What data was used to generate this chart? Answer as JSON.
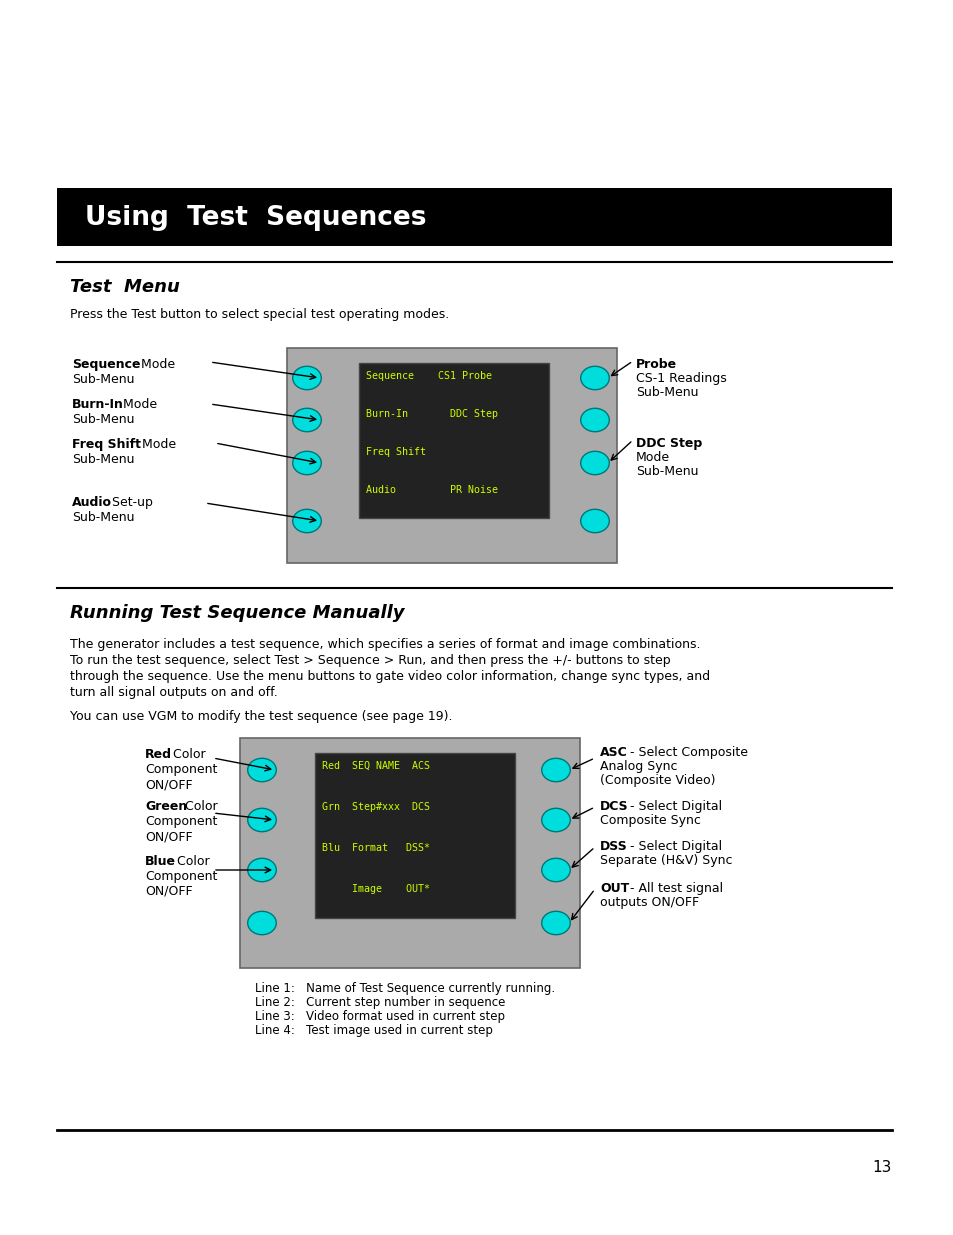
{
  "title_banner": "Using  Test  Sequences",
  "banner_bg": "#000000",
  "banner_text_color": "#ffffff",
  "section1_title": "Test  Menu",
  "section1_body1": "Press the Test button to select special test operating modes.",
  "section2_title": "Running Test Sequence Manually",
  "section2_body1": "The generator includes a test sequence, which specifies a series of format and image combinations.\nTo run the test sequence, select Test > Sequence > Run, and then press the +/- buttons to step\nthrough the sequence. Use the menu buttons to gate video color information, change sync types, and\nturn all signal outputs on and off.",
  "section2_body2": "You can use VGM to modify the test sequence (see page 19).",
  "page_number": "13",
  "bg_color": "#ffffff",
  "text_color": "#000000",
  "cyan_color": "#00dddd",
  "screen_bg": "#222222",
  "screen_green": "#ccff00",
  "device_gray": "#aaaaaa",
  "line_color": "#000000",
  "screen1_lines": [
    "Sequence    CS1 Probe",
    "Burn-In       DDC Step",
    "Freq Shift",
    "Audio         PR Noise"
  ],
  "screen2_lines": [
    "Red  SEQ NAME  ACS",
    "Grn  Step#xxx  DCS",
    "Blu  Format   DSS*",
    "     Image    OUT*"
  ],
  "caption_lines": [
    "Line 1:   Name of Test Sequence currently running.",
    "Line 2:   Current step number in sequence",
    "Line 3:   Video format used in current step",
    "Line 4:   Test image used in current step"
  ]
}
